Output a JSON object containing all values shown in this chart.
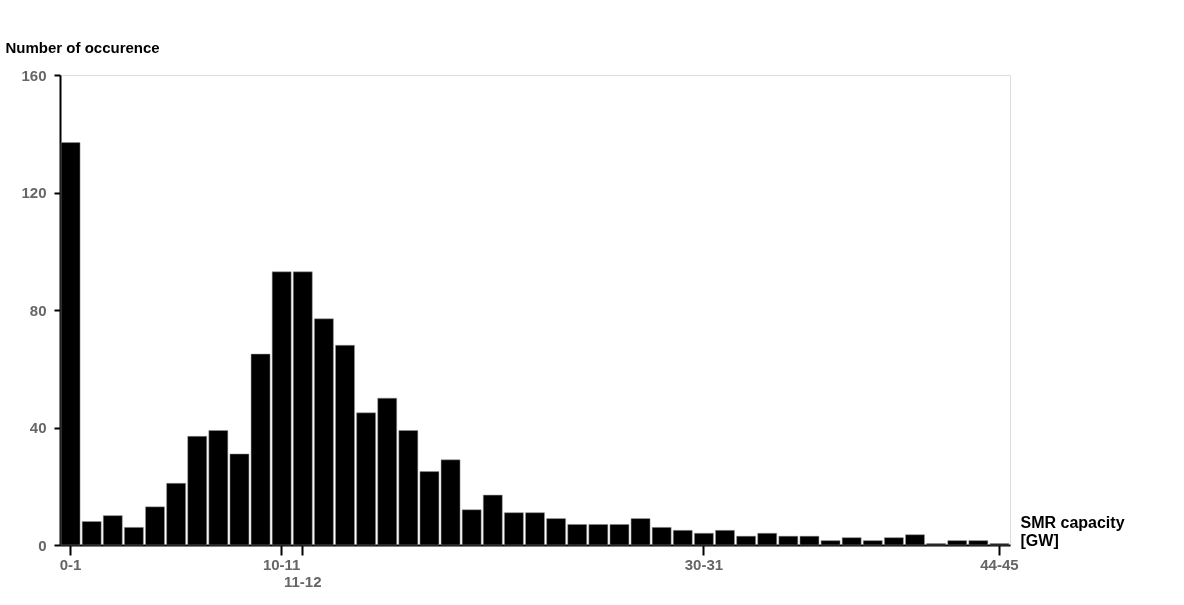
{
  "chart_data": {
    "type": "bar",
    "ylabel": "Number of occurence",
    "xlabel": "SMR capacity\n[GW]",
    "categories": [
      "0-1",
      null,
      null,
      null,
      null,
      null,
      null,
      null,
      null,
      null,
      "10-11",
      "11-12",
      null,
      null,
      null,
      null,
      null,
      null,
      null,
      null,
      null,
      null,
      null,
      null,
      null,
      null,
      null,
      null,
      null,
      null,
      "30-31",
      null,
      null,
      null,
      null,
      null,
      null,
      null,
      null,
      null,
      null,
      null,
      null,
      null,
      "44-45"
    ],
    "values": [
      137,
      8,
      10,
      6,
      13,
      21,
      37,
      39,
      31,
      65,
      93,
      93,
      77,
      68,
      45,
      50,
      39,
      25,
      29,
      12,
      17,
      11,
      11,
      9,
      7,
      7,
      7,
      9,
      6,
      5,
      4,
      5,
      3,
      4,
      3,
      3,
      1.5,
      2.5,
      1.5,
      2.5,
      3.5,
      0.5,
      1.5,
      1.5,
      0.5
    ],
    "color": "#000000",
    "ylim": [
      0,
      160
    ],
    "yticks": [
      0,
      40,
      80,
      120,
      160
    ],
    "grid": false
  }
}
